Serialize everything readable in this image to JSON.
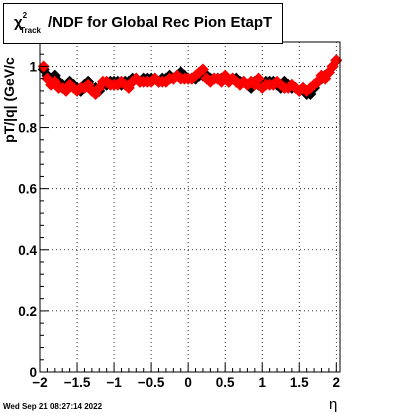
{
  "chart_data": {
    "type": "scatter",
    "title": "χ²_Track/NDF for Global Rec Pion EtapT",
    "title_parts": {
      "chi": "χ",
      "sup": "2",
      "sub": "Track",
      "rest": "/NDF for Global Rec Pion EtapT"
    },
    "xlabel": "η",
    "ylabel": "pT/|q| (GeV/c",
    "xlim": [
      -2,
      2.05
    ],
    "ylim": [
      0,
      1.08
    ],
    "x_ticks": [
      -2,
      -1.5,
      -1,
      -0.5,
      0,
      0.5,
      1,
      1.5,
      2
    ],
    "x_tick_labels": [
      "−2",
      "−1.5",
      "−1",
      "−0.5",
      "0",
      "0.5",
      "1",
      "1.5",
      "2"
    ],
    "y_ticks": [
      0,
      0.2,
      0.4,
      0.6,
      0.8,
      1
    ],
    "y_tick_labels": [
      "0",
      "0.2",
      "0.4",
      "0.6",
      "0.8",
      "1"
    ],
    "grid": true,
    "series": [
      {
        "color": "#000000",
        "x": [
          -1.95,
          -1.9,
          -1.85,
          -1.8,
          -1.75,
          -1.7,
          -1.65,
          -1.6,
          -1.55,
          -1.5,
          -1.45,
          -1.4,
          -1.35,
          -1.3,
          -1.25,
          -1.2,
          -1.15,
          -1.1,
          -1.05,
          -1.0,
          -0.95,
          -0.9,
          -0.85,
          -0.8,
          -0.75,
          -0.7,
          -0.65,
          -0.6,
          -0.55,
          -0.5,
          -0.45,
          -0.4,
          -0.35,
          -0.3,
          -0.25,
          -0.2,
          -0.15,
          -0.1,
          -0.05,
          0.0,
          0.05,
          0.1,
          0.15,
          0.2,
          0.25,
          0.3,
          0.35,
          0.4,
          0.45,
          0.5,
          0.55,
          0.6,
          0.65,
          0.7,
          0.75,
          0.8,
          0.85,
          0.9,
          0.95,
          1.0,
          1.05,
          1.1,
          1.15,
          1.2,
          1.25,
          1.3,
          1.35,
          1.4,
          1.45,
          1.5,
          1.55,
          1.6,
          1.65,
          1.7,
          1.75,
          1.8,
          1.85,
          1.9,
          1.95,
          2.0
        ],
        "y": [
          0.99,
          0.97,
          0.95,
          0.97,
          0.95,
          0.94,
          0.93,
          0.95,
          0.94,
          0.93,
          0.92,
          0.94,
          0.95,
          0.93,
          0.93,
          0.92,
          0.94,
          0.94,
          0.95,
          0.95,
          0.95,
          0.94,
          0.95,
          0.95,
          0.96,
          0.96,
          0.95,
          0.96,
          0.96,
          0.96,
          0.96,
          0.95,
          0.96,
          0.96,
          0.97,
          0.96,
          0.97,
          0.98,
          0.97,
          0.96,
          0.96,
          0.96,
          0.97,
          0.97,
          0.97,
          0.96,
          0.96,
          0.96,
          0.96,
          0.96,
          0.95,
          0.96,
          0.96,
          0.95,
          0.95,
          0.94,
          0.93,
          0.95,
          0.94,
          0.94,
          0.95,
          0.95,
          0.95,
          0.94,
          0.93,
          0.95,
          0.94,
          0.93,
          0.93,
          0.92,
          0.93,
          0.91,
          0.91,
          0.93,
          0.95,
          0.96,
          0.97,
          0.98,
          1.0,
          1.02
        ]
      },
      {
        "color": "#ff0000",
        "x": [
          -1.95,
          -1.9,
          -1.85,
          -1.8,
          -1.75,
          -1.7,
          -1.65,
          -1.6,
          -1.55,
          -1.5,
          -1.45,
          -1.4,
          -1.35,
          -1.3,
          -1.25,
          -1.2,
          -1.15,
          -1.1,
          -1.05,
          -1.0,
          -0.95,
          -0.9,
          -0.85,
          -0.8,
          -0.75,
          -0.7,
          -0.65,
          -0.6,
          -0.55,
          -0.5,
          -0.45,
          -0.4,
          -0.35,
          -0.3,
          -0.25,
          -0.2,
          -0.15,
          -0.1,
          -0.05,
          0.0,
          0.05,
          0.1,
          0.15,
          0.2,
          0.25,
          0.3,
          0.35,
          0.4,
          0.45,
          0.5,
          0.55,
          0.6,
          0.65,
          0.7,
          0.75,
          0.8,
          0.85,
          0.9,
          0.95,
          1.0,
          1.05,
          1.1,
          1.15,
          1.2,
          1.25,
          1.3,
          1.35,
          1.4,
          1.45,
          1.5,
          1.55,
          1.6,
          1.65,
          1.7,
          1.75,
          1.8,
          1.85,
          1.9,
          1.95,
          2.0
        ],
        "y": [
          1.0,
          0.96,
          0.94,
          0.95,
          0.93,
          0.93,
          0.92,
          0.94,
          0.93,
          0.92,
          0.93,
          0.93,
          0.94,
          0.92,
          0.91,
          0.93,
          0.95,
          0.95,
          0.94,
          0.94,
          0.94,
          0.95,
          0.94,
          0.93,
          0.95,
          0.96,
          0.95,
          0.95,
          0.95,
          0.95,
          0.96,
          0.95,
          0.95,
          0.95,
          0.96,
          0.96,
          0.97,
          0.96,
          0.96,
          0.96,
          0.96,
          0.97,
          0.98,
          0.99,
          0.96,
          0.95,
          0.96,
          0.96,
          0.95,
          0.97,
          0.95,
          0.96,
          0.95,
          0.94,
          0.95,
          0.94,
          0.95,
          0.94,
          0.96,
          0.93,
          0.94,
          0.94,
          0.94,
          0.95,
          0.94,
          0.93,
          0.93,
          0.94,
          0.93,
          0.92,
          0.93,
          0.92,
          0.93,
          0.94,
          0.95,
          0.97,
          0.96,
          0.98,
          1.0,
          1.02
        ]
      }
    ]
  },
  "footer": {
    "timestamp": "Wed Sep 21 08:27:14 2022"
  }
}
